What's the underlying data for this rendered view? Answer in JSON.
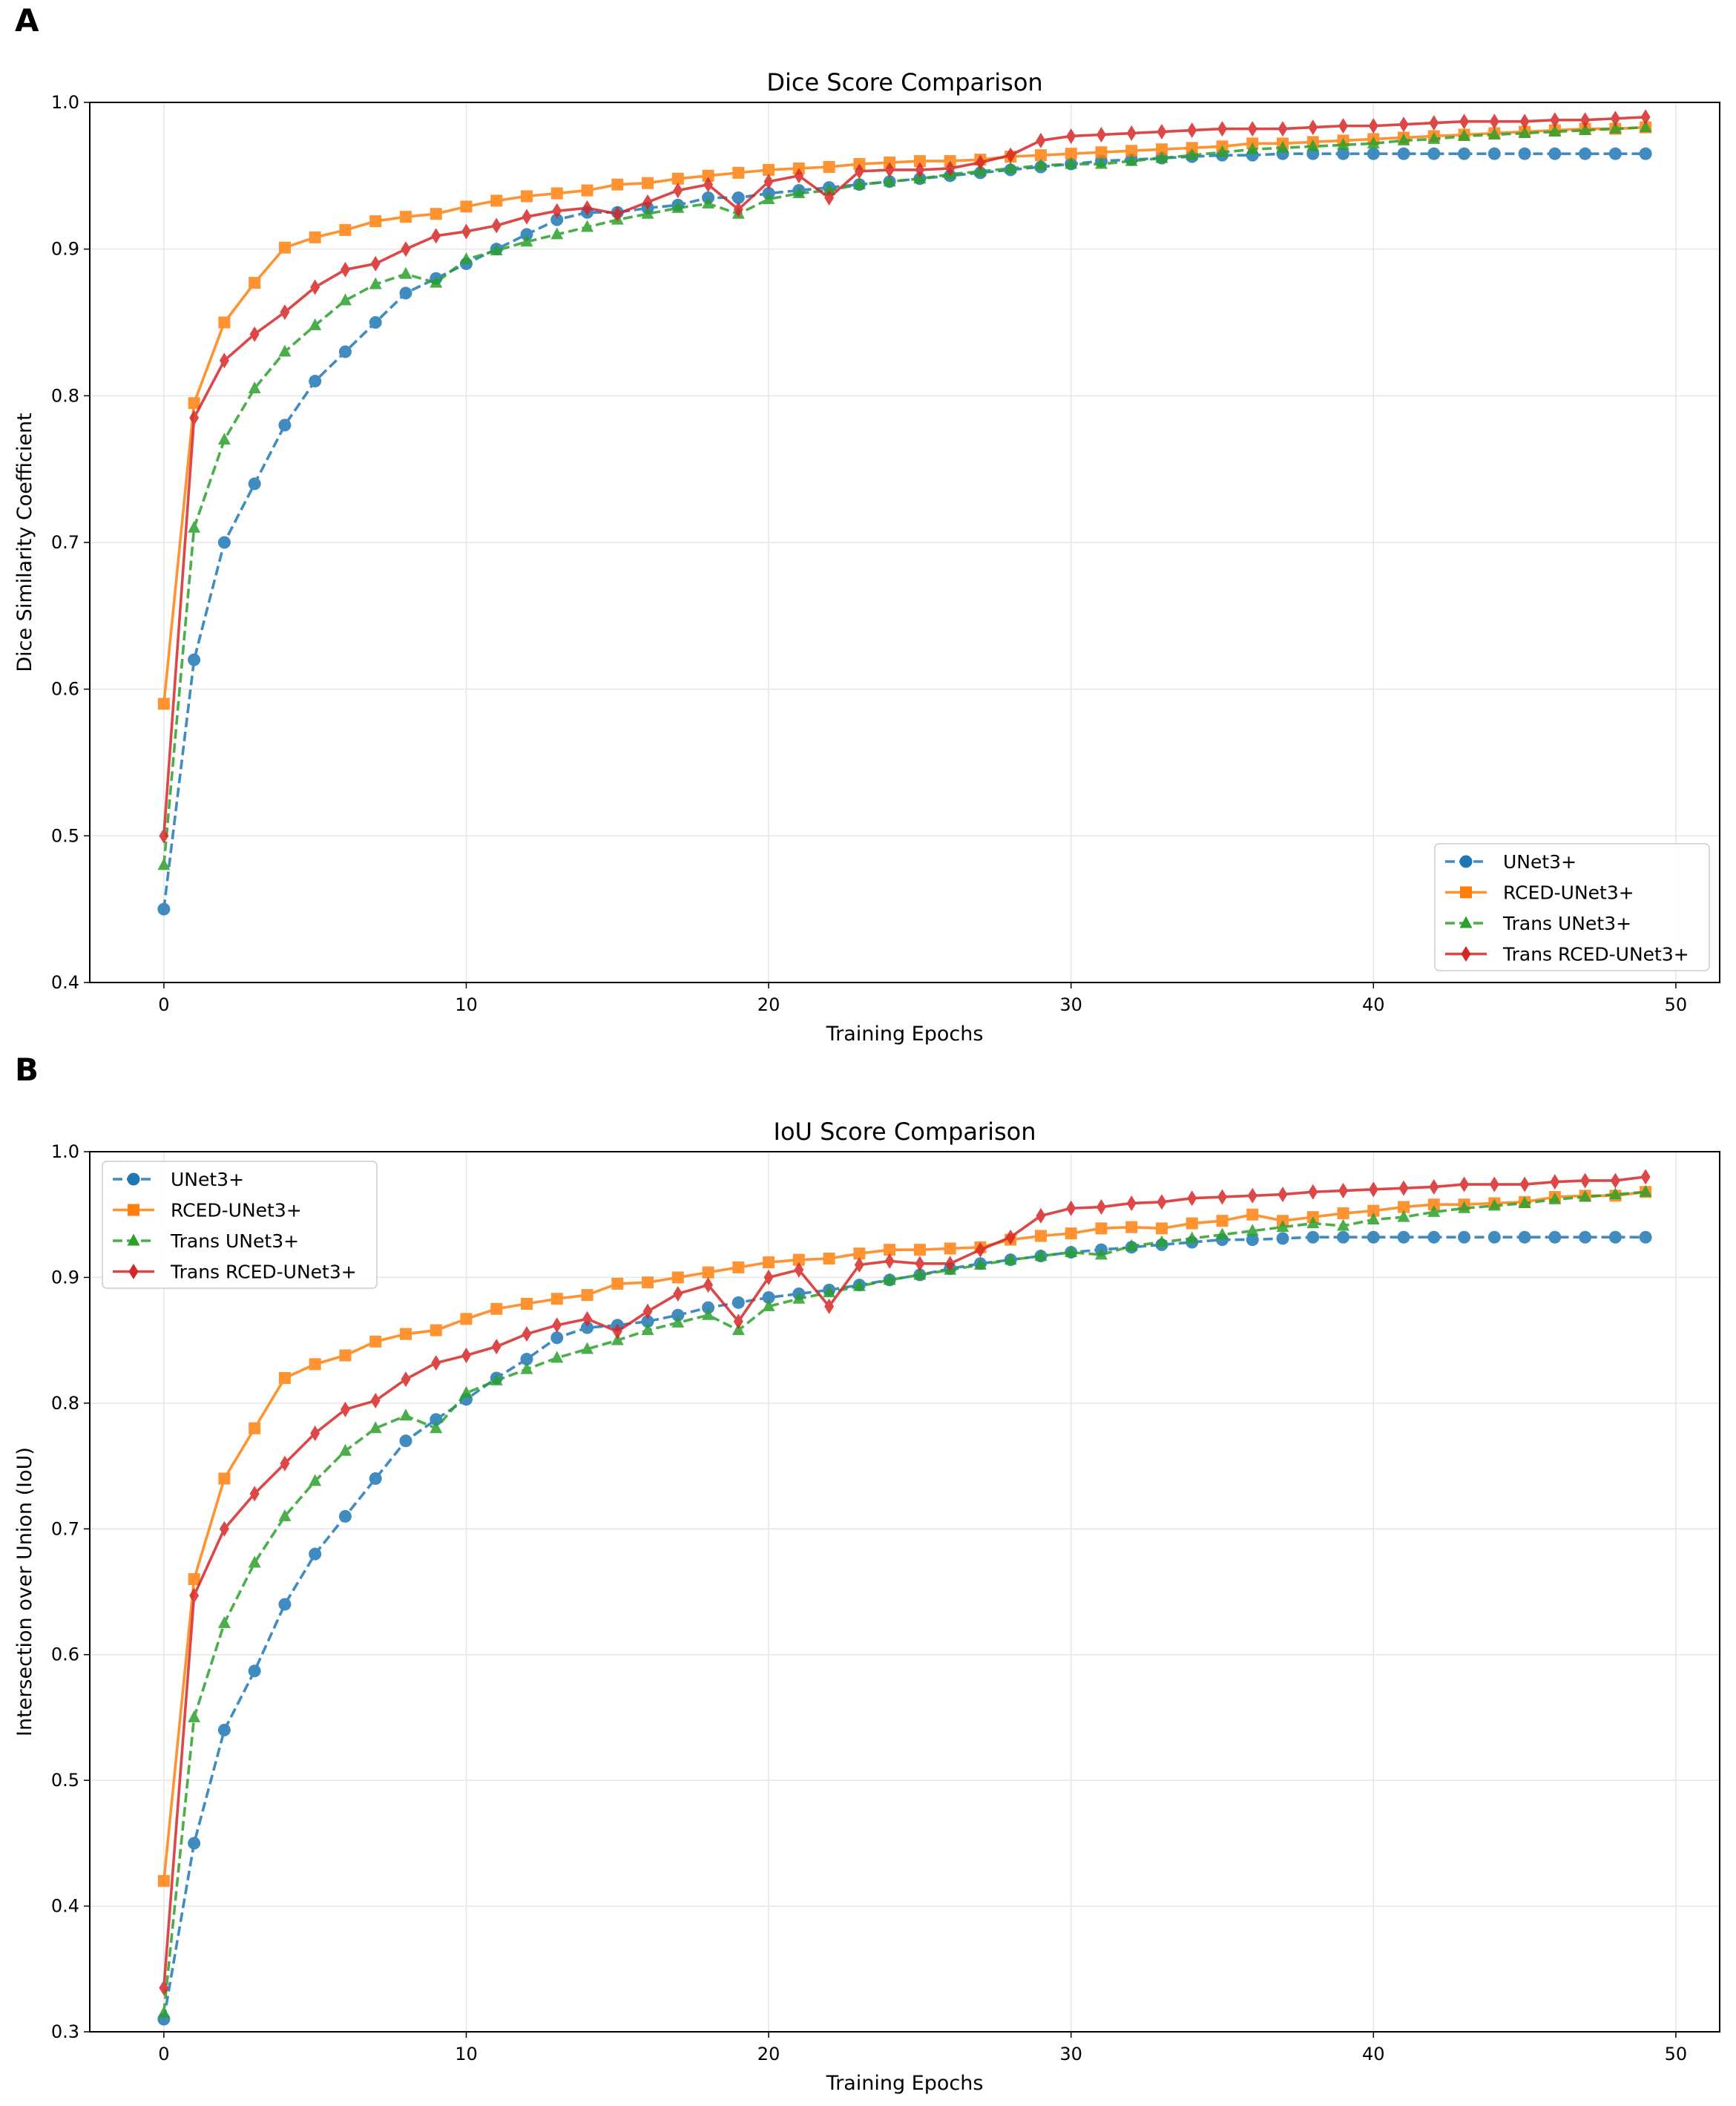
{
  "colors": {
    "UNet3+": "#1f77b4",
    "RCED-UNet3+": "#ff7f0e",
    "Trans UNet3+": "#2ca02c",
    "Trans RCED-UNet3+": "#d62728"
  },
  "chart_data": [
    {
      "panel": "A",
      "type": "line",
      "title": "Dice Score Comparison",
      "xlabel": "Training Epochs",
      "ylabel": "Dice Similarity Coefficient",
      "xlim": [
        -2.45,
        51.45
      ],
      "ylim": [
        0.4,
        1.0
      ],
      "xticks": [
        0,
        10,
        20,
        30,
        40,
        50
      ],
      "yticks": [
        0.4,
        0.5,
        0.6,
        0.7,
        0.8,
        0.9,
        1.0
      ],
      "grid": true,
      "legend_position": "bottom-right",
      "series": [
        {
          "name": "UNet3+",
          "marker": "circle",
          "dash": true,
          "values": [
            0.45,
            0.62,
            0.7,
            0.74,
            0.78,
            0.81,
            0.83,
            0.85,
            0.87,
            0.88,
            0.89,
            0.9,
            0.91,
            0.92,
            0.925,
            0.925,
            0.928,
            0.93,
            0.935,
            0.935,
            0.938,
            0.94,
            0.942,
            0.944,
            0.946,
            0.948,
            0.95,
            0.952,
            0.954,
            0.956,
            0.958,
            0.96,
            0.961,
            0.962,
            0.963,
            0.964,
            0.964,
            0.965,
            0.965,
            0.965,
            0.965,
            0.965,
            0.965,
            0.965,
            0.965,
            0.965,
            0.965,
            0.965,
            0.965,
            0.965
          ]
        },
        {
          "name": "RCED-UNet3+",
          "marker": "square",
          "dash": false,
          "values": [
            0.59,
            0.795,
            0.85,
            0.877,
            0.901,
            0.908,
            0.913,
            0.919,
            0.922,
            0.924,
            0.929,
            0.933,
            0.936,
            0.938,
            0.94,
            0.944,
            0.945,
            0.948,
            0.95,
            0.952,
            0.954,
            0.955,
            0.956,
            0.958,
            0.959,
            0.96,
            0.96,
            0.961,
            0.963,
            0.964,
            0.965,
            0.966,
            0.967,
            0.968,
            0.969,
            0.97,
            0.972,
            0.972,
            0.973,
            0.974,
            0.975,
            0.976,
            0.977,
            0.978,
            0.979,
            0.98,
            0.981,
            0.982,
            0.982,
            0.983
          ]
        },
        {
          "name": "Trans UNet3+",
          "marker": "triangle",
          "dash": true,
          "values": [
            0.48,
            0.71,
            0.77,
            0.805,
            0.83,
            0.848,
            0.865,
            0.876,
            0.883,
            0.877,
            0.893,
            0.899,
            0.905,
            0.91,
            0.915,
            0.92,
            0.924,
            0.928,
            0.931,
            0.924,
            0.934,
            0.938,
            0.94,
            0.944,
            0.946,
            0.948,
            0.951,
            0.953,
            0.955,
            0.957,
            0.958,
            0.958,
            0.96,
            0.962,
            0.964,
            0.966,
            0.968,
            0.969,
            0.97,
            0.971,
            0.972,
            0.974,
            0.975,
            0.977,
            0.978,
            0.979,
            0.98,
            0.981,
            0.982,
            0.983
          ]
        },
        {
          "name": "Trans RCED-UNet3+",
          "marker": "diamond",
          "dash": false,
          "values": [
            0.5,
            0.785,
            0.824,
            0.842,
            0.857,
            0.874,
            0.886,
            0.89,
            0.9,
            0.909,
            0.912,
            0.916,
            0.922,
            0.926,
            0.928,
            0.924,
            0.932,
            0.94,
            0.944,
            0.927,
            0.946,
            0.95,
            0.935,
            0.953,
            0.954,
            0.954,
            0.955,
            0.959,
            0.964,
            0.974,
            0.977,
            0.978,
            0.979,
            0.98,
            0.981,
            0.982,
            0.982,
            0.982,
            0.983,
            0.984,
            0.984,
            0.985,
            0.986,
            0.987,
            0.987,
            0.987,
            0.988,
            0.988,
            0.989,
            0.99
          ]
        }
      ]
    },
    {
      "panel": "B",
      "type": "line",
      "title": "IoU Score Comparison",
      "xlabel": "Training Epochs",
      "ylabel": "Intersection over Union (IoU)",
      "xlim": [
        -2.45,
        51.45
      ],
      "ylim": [
        0.3,
        1.0
      ],
      "xticks": [
        0,
        10,
        20,
        30,
        40,
        50
      ],
      "yticks": [
        0.3,
        0.4,
        0.5,
        0.6,
        0.7,
        0.8,
        0.9,
        1.0
      ],
      "grid": true,
      "legend_position": "top-left",
      "series": [
        {
          "name": "UNet3+",
          "marker": "circle",
          "dash": true,
          "values": [
            0.31,
            0.45,
            0.54,
            0.587,
            0.64,
            0.68,
            0.71,
            0.74,
            0.77,
            0.787,
            0.803,
            0.82,
            0.835,
            0.852,
            0.86,
            0.862,
            0.865,
            0.87,
            0.876,
            0.88,
            0.884,
            0.887,
            0.89,
            0.894,
            0.898,
            0.902,
            0.907,
            0.911,
            0.914,
            0.917,
            0.92,
            0.922,
            0.924,
            0.926,
            0.928,
            0.93,
            0.93,
            0.931,
            0.932,
            0.932,
            0.932,
            0.932,
            0.932,
            0.932,
            0.932,
            0.932,
            0.932,
            0.932,
            0.932,
            0.932
          ]
        },
        {
          "name": "RCED-UNet3+",
          "marker": "square",
          "dash": false,
          "values": [
            0.42,
            0.66,
            0.74,
            0.78,
            0.82,
            0.831,
            0.838,
            0.849,
            0.855,
            0.858,
            0.867,
            0.875,
            0.879,
            0.883,
            0.886,
            0.895,
            0.896,
            0.9,
            0.904,
            0.908,
            0.912,
            0.914,
            0.915,
            0.919,
            0.922,
            0.922,
            0.923,
            0.924,
            0.93,
            0.933,
            0.935,
            0.939,
            0.94,
            0.939,
            0.943,
            0.945,
            0.95,
            0.945,
            0.948,
            0.951,
            0.953,
            0.956,
            0.958,
            0.958,
            0.959,
            0.96,
            0.964,
            0.965,
            0.965,
            0.968
          ]
        },
        {
          "name": "Trans UNet3+",
          "marker": "triangle",
          "dash": true,
          "values": [
            0.315,
            0.55,
            0.625,
            0.673,
            0.71,
            0.738,
            0.762,
            0.78,
            0.79,
            0.78,
            0.808,
            0.818,
            0.827,
            0.836,
            0.843,
            0.85,
            0.858,
            0.864,
            0.87,
            0.858,
            0.877,
            0.883,
            0.888,
            0.893,
            0.898,
            0.902,
            0.906,
            0.91,
            0.914,
            0.917,
            0.92,
            0.918,
            0.925,
            0.928,
            0.931,
            0.934,
            0.937,
            0.94,
            0.943,
            0.941,
            0.946,
            0.948,
            0.952,
            0.955,
            0.957,
            0.959,
            0.962,
            0.964,
            0.966,
            0.968
          ]
        },
        {
          "name": "Trans RCED-UNet3+",
          "marker": "diamond",
          "dash": false,
          "values": [
            0.335,
            0.647,
            0.7,
            0.728,
            0.752,
            0.776,
            0.795,
            0.802,
            0.819,
            0.832,
            0.838,
            0.845,
            0.855,
            0.862,
            0.867,
            0.857,
            0.873,
            0.887,
            0.894,
            0.865,
            0.9,
            0.906,
            0.877,
            0.91,
            0.913,
            0.911,
            0.911,
            0.922,
            0.932,
            0.949,
            0.955,
            0.956,
            0.959,
            0.96,
            0.963,
            0.964,
            0.965,
            0.966,
            0.968,
            0.969,
            0.97,
            0.971,
            0.972,
            0.974,
            0.974,
            0.974,
            0.976,
            0.977,
            0.977,
            0.98
          ]
        }
      ]
    }
  ]
}
